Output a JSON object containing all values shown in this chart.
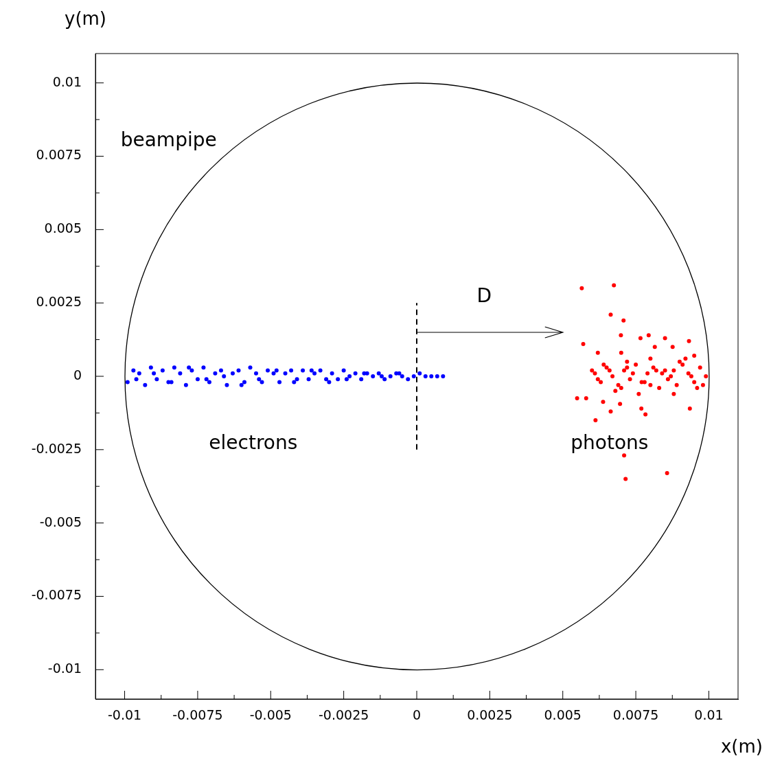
{
  "chart_data": {
    "type": "scatter",
    "xlabel": "x(m)",
    "ylabel": "y(m)",
    "xlim": [
      -0.011,
      0.011
    ],
    "ylim": [
      -0.011,
      0.011
    ],
    "xticks": [
      -0.01,
      {
        "value": -0.00875,
        "label": null
      },
      -0.0075,
      {
        "value": -0.00625,
        "label": null
      },
      -0.005,
      {
        "value": -0.00375,
        "label": null
      },
      -0.0025,
      {
        "value": -0.00125,
        "label": null
      },
      0,
      {
        "value": 0.00125,
        "label": null
      },
      0.0025,
      {
        "value": 0.00375,
        "label": null
      },
      0.005,
      {
        "value": 0.00625,
        "label": null
      },
      0.0075,
      {
        "value": 0.00875,
        "label": null
      },
      0.01
    ],
    "yticks": [
      -0.01,
      {
        "value": -0.00875,
        "label": null
      },
      -0.0075,
      {
        "value": -0.00625,
        "label": null
      },
      -0.005,
      {
        "value": -0.00375,
        "label": null
      },
      -0.0025,
      {
        "value": -0.00125,
        "label": null
      },
      0,
      {
        "value": 0.00125,
        "label": null
      },
      0.0025,
      {
        "value": 0.00375,
        "label": null
      },
      0.005,
      {
        "value": 0.00625,
        "label": null
      },
      0.0075,
      {
        "value": 0.00875,
        "label": null
      },
      0.01
    ],
    "grid": false,
    "legend": false,
    "marker": "circle",
    "series": [
      {
        "type": "line",
        "color": "#000000",
        "marker": "none",
        "line_style": "dashed",
        "x": [
          0,
          0
        ],
        "values": [
          -0.0025,
          0.0025
        ]
      },
      {
        "color": "#0000ff",
        "x": [
          -0.0099,
          -0.0097,
          -0.0095,
          -0.0093,
          -0.0091,
          -0.0089,
          -0.0087,
          -0.0085,
          -0.0083,
          -0.0081,
          -0.0079,
          -0.0077,
          -0.0075,
          -0.0073,
          -0.0071,
          -0.0069,
          -0.0067,
          -0.0065,
          -0.0063,
          -0.0061,
          -0.0059,
          -0.0057,
          -0.0055,
          -0.0053,
          -0.0051,
          -0.0049,
          -0.0047,
          -0.0045,
          -0.0043,
          -0.0041,
          -0.0039,
          -0.0037,
          -0.0035,
          -0.0033,
          -0.0031,
          -0.0029,
          -0.0027,
          -0.0025,
          -0.0023,
          -0.0021,
          -0.0019,
          -0.0017,
          -0.0015,
          -0.0013,
          -0.0011,
          -0.0009,
          -0.0007,
          -0.0005,
          -0.0003,
          -0.0001,
          0.0001,
          0.0003,
          0.0005,
          0.0007,
          0.0009,
          -0.0096,
          -0.009,
          -0.0084,
          -0.0078,
          -0.0072,
          -0.0066,
          -0.006,
          -0.0054,
          -0.0048,
          -0.0042,
          -0.0036,
          -0.003,
          -0.0024,
          -0.0018,
          -0.0012,
          -0.0006
        ],
        "values": [
          -0.0002,
          0.0002,
          0.0001,
          -0.0003,
          0.0003,
          -0.0001,
          0.0002,
          -0.0002,
          0.0003,
          0.0001,
          -0.0003,
          0.0002,
          -0.0001,
          0.0003,
          -0.0002,
          0.0001,
          0.0002,
          -0.0003,
          0.0001,
          0.0002,
          -0.0002,
          0.0003,
          0.0001,
          -0.0002,
          0.0002,
          0.0001,
          -0.0002,
          0.0001,
          0.0002,
          -0.0001,
          0.0002,
          -0.0001,
          0.0001,
          0.0002,
          -0.0001,
          0.0001,
          -0.0001,
          0.0002,
          0,
          0.0001,
          -0.0001,
          0.0001,
          0,
          0.0001,
          -0.0001,
          0,
          0.0001,
          0,
          -0.0001,
          0,
          0.0001,
          0,
          0,
          0,
          0,
          -0.0001,
          0.0001,
          -0.0002,
          0.0003,
          -0.0001,
          0,
          -0.0003,
          -0.0001,
          0.0002,
          -0.0002,
          0.0002,
          -0.0002,
          -0.0001,
          0.0001,
          0,
          0.0001
        ]
      },
      {
        "color": "#ff0000",
        "x": [
          0.00565,
          0.00675,
          0.00664,
          0.00708,
          0.00699,
          0.00794,
          0.00766,
          0.0085,
          0.00932,
          0.0057,
          0.00876,
          0.00815,
          0.0062,
          0.007,
          0.00549,
          0.0058,
          0.00638,
          0.00664,
          0.00696,
          0.00769,
          0.00783,
          0.00935,
          0.00612,
          0.0071,
          0.00857,
          0.00715,
          0.0061,
          0.0063,
          0.0065,
          0.0067,
          0.0069,
          0.0071,
          0.0073,
          0.0075,
          0.0077,
          0.0079,
          0.0081,
          0.0083,
          0.0085,
          0.0087,
          0.0089,
          0.0091,
          0.0093,
          0.0095,
          0.0097,
          0.0099,
          0.0062,
          0.0066,
          0.007,
          0.0074,
          0.0078,
          0.0082,
          0.0086,
          0.009,
          0.0094,
          0.0098,
          0.0064,
          0.0068,
          0.0072,
          0.0076,
          0.008,
          0.0084,
          0.0088,
          0.0092,
          0.0096,
          0.006,
          0.0072,
          0.008,
          0.0088,
          0.0095
        ],
        "values": [
          0.003,
          0.0031,
          0.0021,
          0.0019,
          0.0014,
          0.0014,
          0.0013,
          0.0013,
          0.0012,
          0.0011,
          0.001,
          0.001,
          0.0008,
          0.0008,
          -0.00075,
          -0.00075,
          -0.00087,
          -0.0012,
          -0.00094,
          -0.0011,
          -0.0013,
          -0.0011,
          -0.0015,
          -0.0027,
          -0.0033,
          -0.0035,
          0.0001,
          -0.0002,
          0.0003,
          0,
          -0.0003,
          0.0002,
          -0.0001,
          0.0004,
          -0.0002,
          0.0001,
          0.0003,
          -0.0004,
          0.0002,
          0,
          -0.0003,
          0.0004,
          0.0001,
          -0.0002,
          0.0003,
          0,
          -0.0001,
          0.0002,
          -0.0004,
          0.0001,
          -0.0002,
          0.0002,
          -0.0001,
          0.0005,
          0,
          -0.0003,
          0.0004,
          -0.0005,
          0.0005,
          -0.0006,
          0.0006,
          0.0001,
          -0.0006,
          0.0006,
          -0.0004,
          0.0002,
          0.0003,
          -0.0003,
          0.0002,
          0.0007
        ]
      }
    ],
    "annotations": [
      "beampipe",
      "D",
      "electrons",
      "photons"
    ]
  }
}
